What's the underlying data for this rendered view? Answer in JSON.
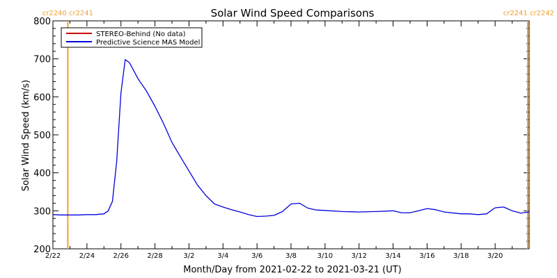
{
  "chart_data": {
    "type": "line",
    "title": "Solar Wind Speed Comparisons",
    "xlabel": "Month/Day from 2021-02-22 to 2021-03-21 (UT)",
    "ylabel": "Solar Wind Speed (km/s)",
    "xlim": [
      "2021-02-22T00:00",
      "2021-03-22T00:00"
    ],
    "ylim": [
      200,
      800
    ],
    "x_ticks": [
      "2/22",
      "2/24",
      "2/26",
      "2/28",
      "3/2",
      "3/4",
      "3/6",
      "3/8",
      "3/10",
      "3/12",
      "3/14",
      "3/16",
      "3/18",
      "3/20"
    ],
    "y_ticks": [
      200,
      300,
      400,
      500,
      600,
      700,
      800
    ],
    "legend": {
      "placement": "top-left",
      "entries": [
        {
          "label": "STEREO-Behind (No data)",
          "color": "#cc0000"
        },
        {
          "label": "Predictive Science MAS Model",
          "color": "#0000dd"
        }
      ]
    },
    "carrington_markers": [
      {
        "date": "2021-02-22T21:00",
        "label_left": "cr2240",
        "label_right": "cr2241"
      },
      {
        "date": "2021-03-21T22:00",
        "label_left": "cr2241",
        "label_right": "cr2242"
      }
    ],
    "series": [
      {
        "name": "Predictive Science MAS Model",
        "color": "#0000dd",
        "x": [
          "2021-02-22T00:00",
          "2021-02-22T12:00",
          "2021-02-23T00:00",
          "2021-02-23T12:00",
          "2021-02-24T00:00",
          "2021-02-24T12:00",
          "2021-02-25T00:00",
          "2021-02-25T06:00",
          "2021-02-25T12:00",
          "2021-02-25T18:00",
          "2021-02-26T00:00",
          "2021-02-26T06:00",
          "2021-02-26T12:00",
          "2021-02-27T00:00",
          "2021-02-27T12:00",
          "2021-02-28T00:00",
          "2021-02-28T12:00",
          "2021-03-01T00:00",
          "2021-03-01T12:00",
          "2021-03-02T00:00",
          "2021-03-02T12:00",
          "2021-03-03T00:00",
          "2021-03-03T12:00",
          "2021-03-04T00:00",
          "2021-03-04T12:00",
          "2021-03-05T00:00",
          "2021-03-05T12:00",
          "2021-03-06T00:00",
          "2021-03-06T12:00",
          "2021-03-07T00:00",
          "2021-03-07T12:00",
          "2021-03-08T00:00",
          "2021-03-08T12:00",
          "2021-03-09T00:00",
          "2021-03-09T12:00",
          "2021-03-10T00:00",
          "2021-03-11T00:00",
          "2021-03-12T00:00",
          "2021-03-13T00:00",
          "2021-03-14T00:00",
          "2021-03-14T12:00",
          "2021-03-15T00:00",
          "2021-03-15T12:00",
          "2021-03-16T00:00",
          "2021-03-16T12:00",
          "2021-03-17T00:00",
          "2021-03-18T00:00",
          "2021-03-18T12:00",
          "2021-03-19T00:00",
          "2021-03-19T12:00",
          "2021-03-20T00:00",
          "2021-03-20T12:00",
          "2021-03-21T00:00",
          "2021-03-21T12:00",
          "2021-03-22T00:00"
        ],
        "y": [
          290,
          289,
          289,
          289,
          290,
          290,
          292,
          300,
          325,
          430,
          610,
          698,
          690,
          648,
          615,
          575,
          530,
          480,
          442,
          405,
          368,
          340,
          318,
          310,
          303,
          297,
          290,
          285,
          286,
          288,
          298,
          318,
          320,
          307,
          302,
          301,
          298,
          297,
          298,
          300,
          295,
          295,
          300,
          306,
          303,
          297,
          292,
          292,
          290,
          292,
          308,
          310,
          300,
          294,
          297
        ]
      },
      {
        "name": "STEREO-Behind (No data)",
        "color": "#cc0000",
        "x": [],
        "y": []
      }
    ]
  }
}
